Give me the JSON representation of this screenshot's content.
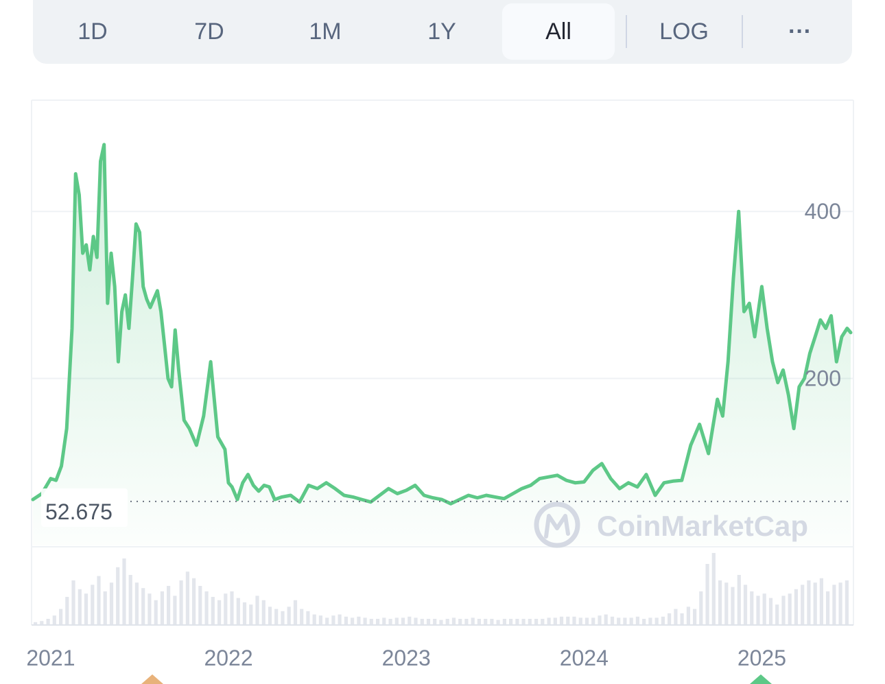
{
  "tabs": {
    "items": [
      {
        "label": "1D",
        "active": false
      },
      {
        "label": "7D",
        "active": false
      },
      {
        "label": "1M",
        "active": false
      },
      {
        "label": "1Y",
        "active": false
      },
      {
        "label": "All",
        "active": true
      },
      {
        "label": "LOG",
        "active": false
      }
    ],
    "more_label": "···"
  },
  "watermark": {
    "text": "CoinMarketCap"
  },
  "colors": {
    "line": "#5dc887",
    "down": "#ea3943",
    "grid": "#eff2f5",
    "text": "#7c8699"
  },
  "chart_data": {
    "type": "line",
    "x_ticks": [
      "2021",
      "2022",
      "2023",
      "2024",
      "2025"
    ],
    "y_ticks": [
      200,
      400
    ],
    "ylim": [
      0,
      530
    ],
    "xlim": [
      2020.9,
      2025.5
    ],
    "reference_value": "52.675",
    "reference_y": 52.675,
    "series": [
      {
        "x": [
          2020.9,
          2020.95,
          2021.0,
          2021.03,
          2021.06,
          2021.09,
          2021.12,
          2021.14,
          2021.16,
          2021.18,
          2021.2,
          2021.22,
          2021.24,
          2021.26,
          2021.28,
          2021.3,
          2021.32,
          2021.34,
          2021.36,
          2021.38,
          2021.4,
          2021.42,
          2021.44,
          2021.46,
          2021.48,
          2021.5,
          2021.52,
          2021.54,
          2021.56,
          2021.58,
          2021.6,
          2021.62,
          2021.64,
          2021.66,
          2021.68,
          2021.7,
          2021.72,
          2021.75,
          2021.78,
          2021.82,
          2021.86,
          2021.9,
          2021.94,
          2021.98,
          2022.0,
          2022.02,
          2022.05,
          2022.08,
          2022.11,
          2022.14,
          2022.17,
          2022.2,
          2022.23,
          2022.26,
          2022.3,
          2022.35,
          2022.4,
          2022.45,
          2022.5,
          2022.55,
          2022.6,
          2022.65,
          2022.7,
          2022.75,
          2022.8,
          2022.85,
          2022.9,
          2022.95,
          2023.0,
          2023.05,
          2023.1,
          2023.15,
          2023.2,
          2023.25,
          2023.3,
          2023.35,
          2023.4,
          2023.45,
          2023.5,
          2023.55,
          2023.6,
          2023.65,
          2023.7,
          2023.75,
          2023.8,
          2023.85,
          2023.9,
          2023.95,
          2024.0,
          2024.05,
          2024.1,
          2024.15,
          2024.2,
          2024.25,
          2024.3,
          2024.35,
          2024.4,
          2024.45,
          2024.5,
          2024.55,
          2024.6,
          2024.65,
          2024.7,
          2024.75,
          2024.78,
          2024.81,
          2024.84,
          2024.87,
          2024.9,
          2024.93,
          2024.96,
          2025.0,
          2025.03,
          2025.06,
          2025.09,
          2025.12,
          2025.15,
          2025.18,
          2025.21,
          2025.24,
          2025.27,
          2025.3,
          2025.33,
          2025.36,
          2025.39,
          2025.42,
          2025.45,
          2025.48,
          2025.5
        ],
        "y": [
          55,
          62,
          80,
          78,
          95,
          140,
          260,
          445,
          420,
          350,
          360,
          330,
          370,
          345,
          460,
          480,
          290,
          350,
          310,
          220,
          280,
          300,
          260,
          320,
          385,
          375,
          310,
          295,
          285,
          295,
          305,
          280,
          240,
          200,
          190,
          258,
          210,
          150,
          140,
          120,
          155,
          220,
          130,
          115,
          75,
          70,
          55,
          75,
          85,
          72,
          65,
          72,
          70,
          55,
          58,
          60,
          52,
          72,
          68,
          75,
          68,
          60,
          58,
          55,
          52,
          60,
          68,
          62,
          66,
          72,
          60,
          57,
          55,
          50,
          55,
          60,
          57,
          60,
          58,
          56,
          62,
          68,
          72,
          80,
          82,
          84,
          78,
          75,
          76,
          90,
          98,
          80,
          68,
          75,
          70,
          85,
          60,
          75,
          77,
          78,
          120,
          145,
          110,
          175,
          155,
          220,
          320,
          400,
          280,
          290,
          250,
          310,
          260,
          220,
          195,
          210,
          180,
          140,
          190,
          200,
          230,
          250,
          270,
          260,
          275,
          220,
          250,
          260,
          255
        ]
      }
    ],
    "volume": [
      2,
      3,
      5,
      8,
      14,
      25,
      40,
      32,
      28,
      36,
      44,
      30,
      38,
      52,
      60,
      45,
      38,
      33,
      28,
      22,
      30,
      35,
      26,
      40,
      48,
      42,
      35,
      30,
      25,
      22,
      28,
      30,
      24,
      20,
      18,
      26,
      22,
      16,
      14,
      12,
      16,
      22,
      14,
      12,
      9,
      8,
      6,
      8,
      9,
      7,
      6,
      7,
      6,
      5,
      5,
      6,
      5,
      6,
      6,
      7,
      6,
      5,
      5,
      5,
      4,
      5,
      6,
      5,
      5,
      6,
      5,
      5,
      5,
      4,
      5,
      5,
      5,
      5,
      5,
      5,
      5,
      6,
      6,
      7,
      7,
      7,
      6,
      6,
      6,
      8,
      9,
      7,
      6,
      6,
      6,
      7,
      5,
      6,
      6,
      7,
      10,
      14,
      10,
      16,
      14,
      30,
      55,
      65,
      40,
      38,
      34,
      45,
      36,
      30,
      26,
      28,
      24,
      18,
      26,
      28,
      32,
      36,
      40,
      38,
      42,
      30,
      36,
      38,
      40
    ]
  }
}
